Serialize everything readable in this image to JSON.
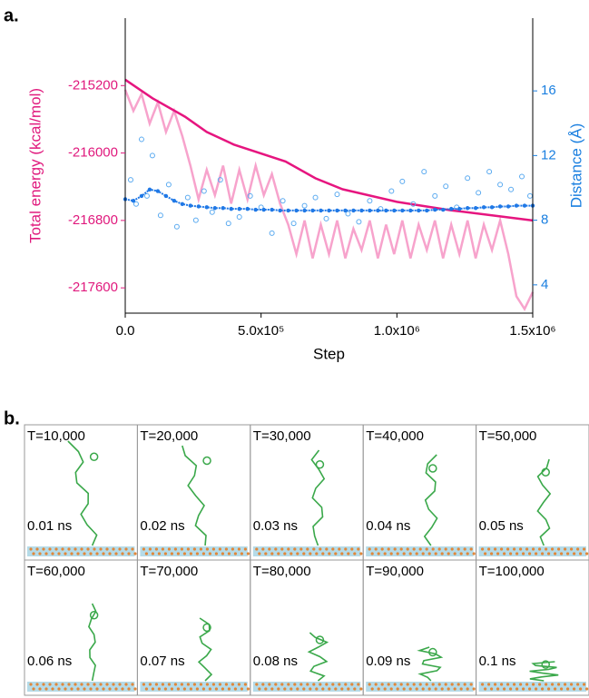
{
  "chart_data": {
    "type": "line",
    "panel_label": "a.",
    "x_label": "Step",
    "y_label": "Total energy (kcal/mol)",
    "y2_label": "Distance (Å)",
    "y_color": "#e0197d",
    "y2_color": "#1a7fe0",
    "xlim": [
      0,
      1500000
    ],
    "xticks": [
      {
        "value": 0,
        "label": "0.0"
      },
      {
        "value": 500000,
        "label": "5.0x10⁵"
      },
      {
        "value": 1000000,
        "label": "1.0x10⁶"
      },
      {
        "value": 1500000,
        "label": "1.5x10⁶"
      }
    ],
    "ylim": [
      -217900,
      -214400
    ],
    "yticks": [
      -217600,
      -216800,
      -216000,
      -215200
    ],
    "y2lim": [
      2.25,
      20.5
    ],
    "y2ticks": [
      4,
      8,
      12,
      16
    ],
    "series": [
      {
        "kind": "noisy",
        "color": "#f7a3cc",
        "x": [
          0,
          30000,
          60000,
          90000,
          120000,
          150000,
          180000,
          210000,
          240000,
          270000,
          300000,
          330000,
          360000,
          390000,
          420000,
          450000,
          480000,
          510000,
          540000,
          570000,
          600000,
          630000,
          660000,
          690000,
          720000,
          750000,
          780000,
          810000,
          840000,
          870000,
          900000,
          930000,
          960000,
          990000,
          1020000,
          1050000,
          1080000,
          1110000,
          1140000,
          1170000,
          1200000,
          1230000,
          1260000,
          1290000,
          1320000,
          1350000,
          1380000,
          1410000,
          1440000,
          1470000,
          1500000
        ],
        "values": [
          -215250,
          -215500,
          -215300,
          -215650,
          -215400,
          -215750,
          -215500,
          -215800,
          -216150,
          -216550,
          -216200,
          -216500,
          -216150,
          -216600,
          -216200,
          -216550,
          -216150,
          -216500,
          -216250,
          -216600,
          -216850,
          -217200,
          -216800,
          -217250,
          -216850,
          -217200,
          -216800,
          -217250,
          -216900,
          -217150,
          -216800,
          -217250,
          -216850,
          -217200,
          -216800,
          -217250,
          -216850,
          -217150,
          -216800,
          -217250,
          -216850,
          -217200,
          -216800,
          -217250,
          -216850,
          -217150,
          -216800,
          -217200,
          -217700,
          -217850,
          -217650
        ]
      },
      {
        "kind": "line",
        "color": "#e6157f",
        "x": [
          0,
          100000,
          220000,
          300000,
          400000,
          590000,
          700000,
          800000,
          1000000,
          1200000,
          1400000,
          1500000
        ],
        "values": [
          -215130,
          -215350,
          -215570,
          -215750,
          -215900,
          -216100,
          -216300,
          -216430,
          -216580,
          -216680,
          -216760,
          -216800
        ]
      },
      {
        "kind": "open",
        "color": "#5aaaf0",
        "axis": "y2",
        "x": [
          20000,
          40000,
          60000,
          80000,
          100000,
          130000,
          160000,
          190000,
          230000,
          260000,
          290000,
          320000,
          350000,
          380000,
          420000,
          460000,
          500000,
          540000,
          580000,
          620000,
          660000,
          700000,
          740000,
          780000,
          820000,
          860000,
          900000,
          940000,
          980000,
          1020000,
          1060000,
          1100000,
          1140000,
          1180000,
          1220000,
          1260000,
          1300000,
          1340000,
          1380000,
          1420000,
          1460000,
          1490000
        ],
        "values": [
          10.5,
          9.0,
          13.0,
          9.5,
          12.0,
          8.3,
          10.2,
          7.6,
          9.4,
          8.0,
          9.8,
          8.5,
          10.5,
          7.8,
          8.2,
          9.5,
          8.8,
          7.2,
          9.2,
          7.8,
          8.9,
          9.4,
          8.1,
          9.6,
          8.4,
          7.9,
          9.2,
          8.7,
          9.8,
          10.4,
          9.0,
          11.0,
          9.5,
          10.1,
          8.8,
          10.6,
          9.7,
          11.0,
          10.2,
          9.9,
          10.7,
          9.5
        ]
      },
      {
        "kind": "dots",
        "color": "#1f78e6",
        "axis": "y2",
        "x": [
          0,
          30000,
          60000,
          90000,
          120000,
          150000,
          180000,
          210000,
          240000,
          270000,
          300000,
          330000,
          360000,
          390000,
          420000,
          450000,
          480000,
          510000,
          540000,
          570000,
          600000,
          630000,
          660000,
          690000,
          720000,
          750000,
          780000,
          810000,
          840000,
          870000,
          900000,
          930000,
          960000,
          990000,
          1020000,
          1050000,
          1080000,
          1110000,
          1140000,
          1170000,
          1200000,
          1230000,
          1260000,
          1290000,
          1320000,
          1350000,
          1380000,
          1410000,
          1440000,
          1470000,
          1500000
        ],
        "values": [
          9.3,
          9.2,
          9.5,
          9.9,
          9.8,
          9.5,
          9.2,
          9.0,
          8.9,
          8.85,
          8.8,
          8.75,
          8.75,
          8.7,
          8.7,
          8.7,
          8.65,
          8.65,
          8.65,
          8.6,
          8.6,
          8.6,
          8.6,
          8.6,
          8.6,
          8.6,
          8.6,
          8.6,
          8.6,
          8.6,
          8.6,
          8.6,
          8.6,
          8.6,
          8.6,
          8.6,
          8.6,
          8.6,
          8.65,
          8.65,
          8.7,
          8.7,
          8.75,
          8.75,
          8.8,
          8.8,
          8.85,
          8.85,
          8.9,
          8.9,
          8.9
        ]
      }
    ]
  },
  "panel_b": {
    "label": "b.",
    "frames": [
      {
        "time": "T=10,000",
        "duration": "0.01 ns"
      },
      {
        "time": "T=20,000",
        "duration": "0.02 ns"
      },
      {
        "time": "T=30,000",
        "duration": "0.03 ns"
      },
      {
        "time": "T=40,000",
        "duration": "0.04 ns"
      },
      {
        "time": "T=50,000",
        "duration": "0.05 ns"
      },
      {
        "time": "T=60,000",
        "duration": "0.06 ns"
      },
      {
        "time": "T=70,000",
        "duration": "0.07 ns"
      },
      {
        "time": "T=80,000",
        "duration": "0.08 ns"
      },
      {
        "time": "T=90,000",
        "duration": "0.09 ns"
      },
      {
        "time": "T=100,000",
        "duration": "0.1 ns"
      }
    ]
  }
}
